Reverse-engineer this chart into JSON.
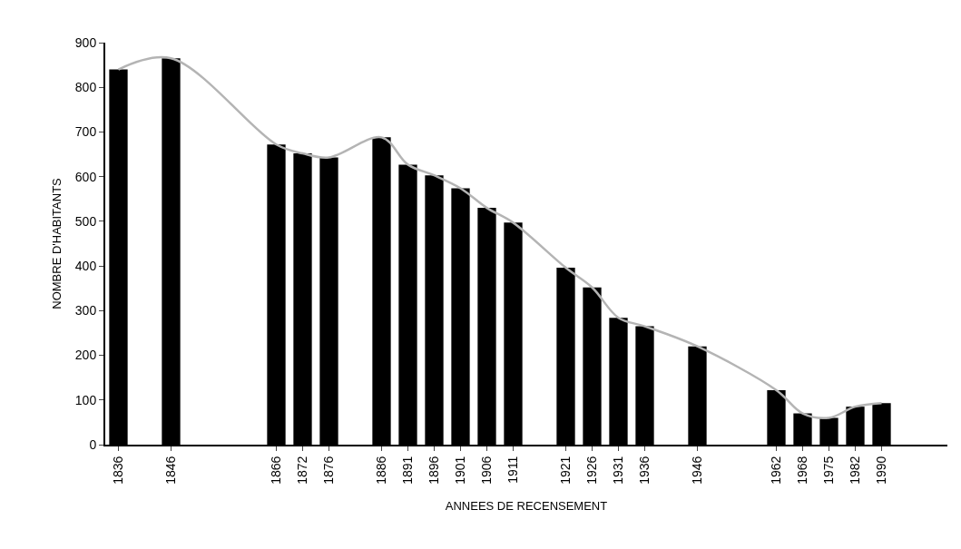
{
  "chart_data": {
    "type": "bar",
    "xlabel": "ANNEES DE RECENSEMENT",
    "ylabel": "NOMBRE D'HABITANTS",
    "categories": [
      "1836",
      null,
      "1846",
      null,
      null,
      null,
      "1866",
      "1872",
      "1876",
      null,
      "1886",
      "1891",
      "1896",
      "1901",
      "1906",
      "1911",
      null,
      "1921",
      "1926",
      "1931",
      "1936",
      null,
      "1946",
      null,
      null,
      "1962",
      "1968",
      "1975",
      "1982",
      "1990",
      null,
      null
    ],
    "series": [
      {
        "color": "#000000",
        "values": [
          840,
          null,
          865,
          null,
          null,
          null,
          672,
          652,
          643,
          null,
          688,
          627,
          603,
          574,
          530,
          497,
          null,
          396,
          352,
          284,
          265,
          null,
          220,
          null,
          null,
          122,
          70,
          60,
          85,
          93,
          null,
          null
        ]
      },
      {
        "type": "line",
        "color": "#b4b4b4",
        "values": [
          840,
          null,
          865,
          null,
          null,
          null,
          672,
          652,
          643,
          null,
          688,
          627,
          603,
          574,
          530,
          497,
          null,
          396,
          352,
          284,
          265,
          null,
          220,
          null,
          null,
          122,
          70,
          60,
          85,
          93,
          null,
          null
        ]
      }
    ],
    "ylim": [
      0,
      900
    ],
    "yticks": [
      0,
      100,
      200,
      300,
      400,
      500,
      600,
      700,
      800,
      900
    ],
    "grid": false,
    "marker": "none"
  }
}
